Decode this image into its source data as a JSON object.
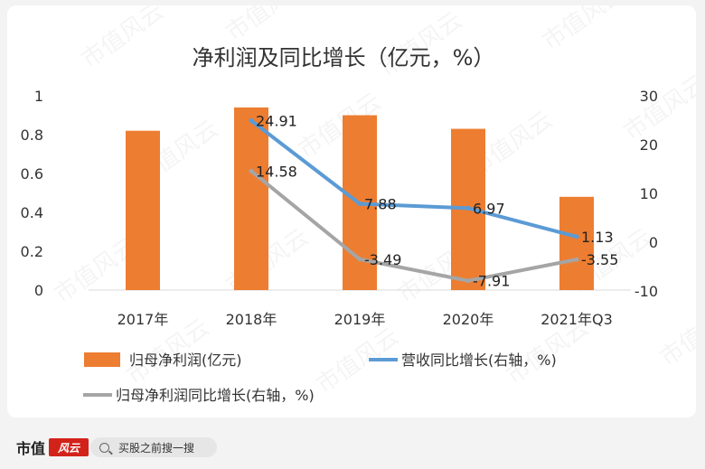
{
  "watermark": "市值风云",
  "footer": {
    "brand_name": "市值",
    "brand_badge": "风云",
    "search_placeholder": "买股之前搜一搜"
  },
  "colors": {
    "bar": "#ed7d31",
    "revenue_line": "#5b9bd5",
    "profit_growth_line": "#a5a5a5"
  },
  "chart_data": {
    "type": "bar",
    "title": "净利润及同比增长（亿元，%）",
    "categories": [
      "2017年",
      "2018年",
      "2019年",
      "2020年",
      "2021年Q3"
    ],
    "y_left": {
      "ylim": [
        0,
        1
      ],
      "ticks": [
        "0",
        "0.2",
        "0.4",
        "0.6",
        "0.8",
        "1"
      ],
      "tick_values": [
        0,
        0.2,
        0.4,
        0.6,
        0.8,
        1
      ]
    },
    "y_right": {
      "ylim": [
        -10,
        30
      ],
      "ticks": [
        "-10",
        "0",
        "10",
        "20",
        "30"
      ],
      "tick_values": [
        -10,
        0,
        10,
        20,
        30
      ]
    },
    "series": [
      {
        "name": "归母净利润(亿元)",
        "kind": "bar",
        "axis": "left",
        "values": [
          0.82,
          0.94,
          0.9,
          0.83,
          0.48
        ],
        "labels": []
      },
      {
        "name": "营收同比增长(右轴，%)",
        "kind": "line",
        "axis": "right",
        "values": [
          null,
          24.91,
          7.88,
          6.97,
          1.13
        ],
        "labels": [
          "",
          "24.91",
          "7.88",
          "6.97",
          "1.13"
        ]
      },
      {
        "name": "归母净利润同比增长(右轴，%)",
        "kind": "line",
        "axis": "right",
        "values": [
          null,
          14.58,
          -3.49,
          -7.91,
          -3.55
        ],
        "labels": [
          "",
          "14.58",
          "-3.49",
          "-7.91",
          "-3.55"
        ]
      }
    ],
    "legend": [
      "归母净利润(亿元)",
      "营收同比增长(右轴，%)",
      "归母净利润同比增长(右轴，%)"
    ]
  }
}
